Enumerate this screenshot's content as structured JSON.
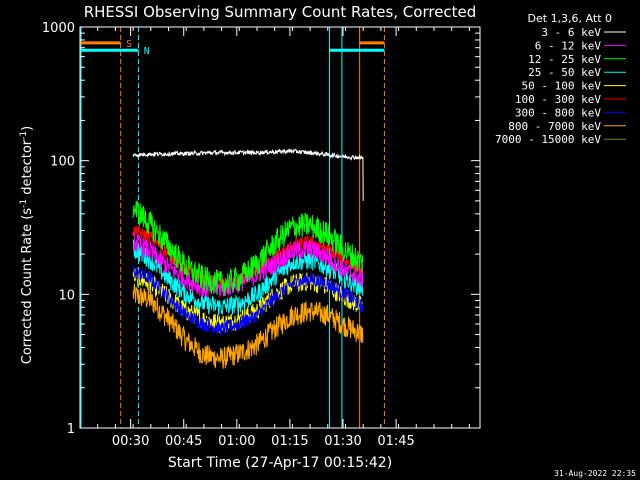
{
  "chart_data": {
    "type": "line",
    "title": "RHESSI Observing Summary Count Rates, Corrected",
    "xlabel": "Start Time (27-Apr-17 00:15:42)",
    "ylabel_main": "Corrected Count Rate (s",
    "ylabel_sup1": "-1",
    "ylabel_mid": " detector",
    "ylabel_sup2": "-1",
    "ylabel_end": ")",
    "y_scale": "log",
    "ylim": [
      1,
      1000
    ],
    "xlim_minutes": [
      0,
      113
    ],
    "x_ticks": [
      {
        "minute": 14.3,
        "label": "00:30"
      },
      {
        "minute": 29.3,
        "label": "00:45"
      },
      {
        "minute": 44.3,
        "label": "01:00"
      },
      {
        "minute": 59.3,
        "label": "01:15"
      },
      {
        "minute": 74.3,
        "label": "01:30"
      },
      {
        "minute": 89.3,
        "label": "01:45"
      }
    ],
    "y_tick_labels": [
      {
        "value": 1,
        "label": "1"
      },
      {
        "value": 10,
        "label": "10"
      },
      {
        "value": 100,
        "label": "100"
      },
      {
        "value": 1000,
        "label": "1000"
      }
    ],
    "legend_placement": "top-right",
    "legend_header": "Det 1,3,6, Att 0",
    "footer_date": "31-Aug-2022 22:35",
    "series": [
      {
        "name": "3 - 6 keV",
        "color": "#ffffff",
        "points": [
          [
            15,
            110
          ],
          [
            20,
            112
          ],
          [
            30,
            113
          ],
          [
            40,
            115
          ],
          [
            50,
            115
          ],
          [
            60,
            118
          ],
          [
            67,
            113
          ],
          [
            75,
            107
          ],
          [
            80,
            105
          ]
        ]
      },
      {
        "name": "6 - 12 keV",
        "color": "#ff00ff",
        "points": [
          [
            15,
            25
          ],
          [
            20,
            21
          ],
          [
            25,
            16
          ],
          [
            30,
            13
          ],
          [
            35,
            11
          ],
          [
            40,
            11
          ],
          [
            45,
            12
          ],
          [
            50,
            14
          ],
          [
            55,
            17
          ],
          [
            60,
            21
          ],
          [
            65,
            22
          ],
          [
            70,
            19
          ],
          [
            75,
            15
          ],
          [
            80,
            13
          ]
        ]
      },
      {
        "name": "12 - 25 keV",
        "color": "#00ff00",
        "points": [
          [
            15,
            45
          ],
          [
            20,
            33
          ],
          [
            25,
            23
          ],
          [
            30,
            16
          ],
          [
            35,
            13
          ],
          [
            40,
            12
          ],
          [
            45,
            13
          ],
          [
            50,
            17
          ],
          [
            55,
            24
          ],
          [
            60,
            32
          ],
          [
            65,
            33
          ],
          [
            70,
            28
          ],
          [
            75,
            21
          ],
          [
            80,
            17
          ]
        ]
      },
      {
        "name": "25 - 50 keV",
        "color": "#00ffff",
        "points": [
          [
            15,
            22
          ],
          [
            20,
            18
          ],
          [
            25,
            13
          ],
          [
            30,
            10
          ],
          [
            35,
            8.5
          ],
          [
            40,
            8
          ],
          [
            45,
            8.5
          ],
          [
            50,
            10
          ],
          [
            55,
            13.5
          ],
          [
            60,
            17.5
          ],
          [
            65,
            18
          ],
          [
            70,
            16
          ],
          [
            75,
            13
          ],
          [
            80,
            11
          ]
        ]
      },
      {
        "name": "50 - 100 keV",
        "color": "#ffff00",
        "points": [
          [
            15,
            14
          ],
          [
            20,
            12
          ],
          [
            25,
            9.5
          ],
          [
            30,
            7.5
          ],
          [
            35,
            6.5
          ],
          [
            40,
            6
          ],
          [
            45,
            6.5
          ],
          [
            50,
            7.5
          ],
          [
            55,
            10
          ],
          [
            60,
            12
          ],
          [
            65,
            12.5
          ],
          [
            70,
            11.5
          ],
          [
            75,
            9.5
          ],
          [
            80,
            8
          ]
        ]
      },
      {
        "name": "100 - 300 keV",
        "color": "#ff0000",
        "points": [
          [
            15,
            30
          ],
          [
            20,
            27
          ],
          [
            25,
            20
          ],
          [
            30,
            15
          ],
          [
            35,
            13
          ],
          [
            40,
            12
          ],
          [
            45,
            12.5
          ],
          [
            50,
            15
          ],
          [
            55,
            19
          ],
          [
            60,
            23
          ],
          [
            65,
            25
          ],
          [
            70,
            22
          ],
          [
            75,
            18
          ],
          [
            80,
            15
          ]
        ]
      },
      {
        "name": "300 - 800 keV",
        "color": "#0000ff",
        "points": [
          [
            15,
            15
          ],
          [
            20,
            13
          ],
          [
            25,
            9.5
          ],
          [
            30,
            7
          ],
          [
            35,
            6
          ],
          [
            40,
            5.5
          ],
          [
            45,
            6
          ],
          [
            50,
            7
          ],
          [
            55,
            9.5
          ],
          [
            60,
            12
          ],
          [
            65,
            13
          ],
          [
            70,
            12
          ],
          [
            75,
            10
          ],
          [
            80,
            8
          ]
        ]
      },
      {
        "name": "800 - 7000 keV",
        "color": "#ffa500",
        "points": [
          [
            15,
            10
          ],
          [
            20,
            9
          ],
          [
            25,
            6.5
          ],
          [
            30,
            4.5
          ],
          [
            35,
            3.5
          ],
          [
            40,
            3.3
          ],
          [
            45,
            3.6
          ],
          [
            50,
            4.2
          ],
          [
            55,
            5.5
          ],
          [
            60,
            7
          ],
          [
            65,
            7.5
          ],
          [
            70,
            7
          ],
          [
            75,
            5.8
          ],
          [
            80,
            5
          ]
        ]
      },
      {
        "name": "7000 - 15000 keV",
        "color": "#808000",
        "points": []
      }
    ],
    "markers": [
      {
        "label": "S",
        "color": "#ff8000",
        "kind": "bar",
        "from_min": 0,
        "to_min": 11.5,
        "value": 760,
        "label_min": 13
      },
      {
        "label": "N",
        "color": "#00ffff",
        "kind": "bar",
        "from_min": 0,
        "to_min": 16.5,
        "value": 670,
        "label_min": 18
      },
      {
        "label": "",
        "color": "#00ffff",
        "kind": "bar",
        "from_min": 70.5,
        "to_min": 86,
        "value": 670,
        "label_min": 0
      },
      {
        "label": "",
        "color": "#ff8000",
        "kind": "bar",
        "from_min": 79,
        "to_min": 86,
        "value": 760,
        "label_min": 0
      }
    ],
    "vlines": [
      {
        "minute": 0.3,
        "color": "#00ffff",
        "style": "solid"
      },
      {
        "minute": 11.5,
        "color": "#ff8000",
        "style": "dashed"
      },
      {
        "minute": 16.5,
        "color": "#00ffff",
        "style": "dashed"
      },
      {
        "minute": 70.5,
        "color": "#00ffff",
        "style": "solid"
      },
      {
        "minute": 74.0,
        "color": "#00ffff",
        "style": "solid"
      },
      {
        "minute": 79.0,
        "color": "#ff8000",
        "style": "solid"
      },
      {
        "minute": 86.0,
        "color": "#ff8000",
        "style": "dashed"
      }
    ]
  }
}
